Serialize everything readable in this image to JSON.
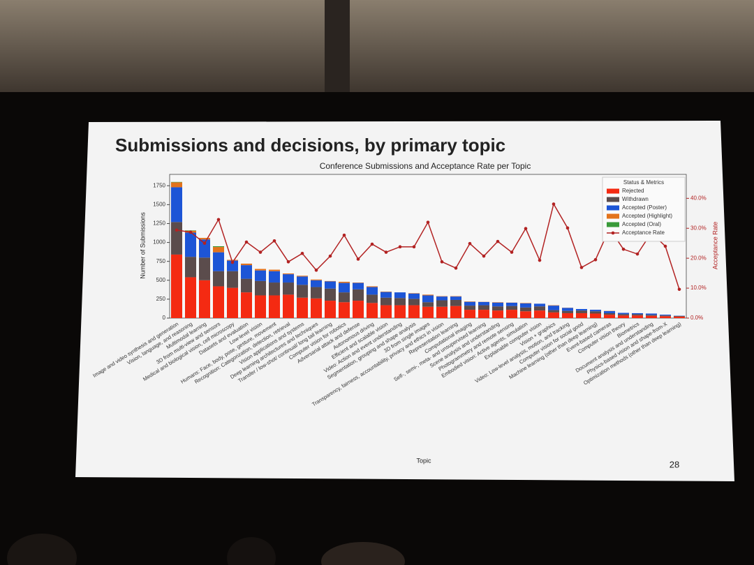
{
  "slide": {
    "title": "Submissions and decisions, by primary topic",
    "page_number": "28"
  },
  "chart_data": {
    "type": "bar",
    "stacked": true,
    "title": "Conference Submissions and Acceptance Rate per Topic",
    "x_label": "Topic",
    "y_label": "Number of Submissions",
    "y2_label": "Acceptance Rate",
    "legend_title": "Status & Metrics",
    "legend": "upper right",
    "categories": [
      "Image and video synthesis and generation",
      "Vision, language, and reasoning",
      "Multimodal learning",
      "3D from multi-view and sensors",
      "Medical and biological vision, cell microscopy",
      "Datasets and evaluation",
      "Low-level vision",
      "Humans: Face, body, pose, gesture, movement",
      "Recognition: Categorization, detection, retrieval",
      "Vision applications and systems",
      "Deep learning architectures and techniques",
      "Transfer / low-shot/ continual/ long tail learning",
      "Computer vision for robotics",
      "Adversarial attack and defense",
      "Autonomous driving",
      "Efficient and scalable vision",
      "Video: Action and event understanding",
      "Segmentation, grouping and shape analysis",
      "3D from single images",
      "Transparency, fairness, accountability, privacy and ethics in vision",
      "Representation learning",
      "Computational imaging",
      "Self-, semi-, meta- and unsupervised learning",
      "Scene analysis and understanding",
      "Photogrammetry and remote sensing",
      "Embodied vision: Active agents, simulation",
      "Explainable computer vision",
      "Vision + graphics",
      "Video: Low-level analysis, motion, and tracking",
      "Computer vision for social good",
      "Machine learning (other than deep learning)",
      "Event-based cameras",
      "Computer vision theory",
      "Biometrics",
      "Document analysis and understanding",
      "Physics-based vision and shape-from-X",
      "Optimization methods (other than deep learning)"
    ],
    "series": [
      {
        "name": "Rejected",
        "color": "#f42a12",
        "values": [
          840,
          540,
          500,
          420,
          400,
          340,
          300,
          300,
          310,
          270,
          260,
          230,
          210,
          230,
          200,
          170,
          170,
          170,
          150,
          150,
          160,
          110,
          110,
          100,
          110,
          90,
          100,
          75,
          65,
          65,
          60,
          45,
          35,
          35,
          30,
          25,
          20
        ]
      },
      {
        "name": "Withdrawn",
        "color": "#5b4c4c",
        "values": [
          430,
          270,
          300,
          200,
          220,
          180,
          190,
          170,
          160,
          170,
          150,
          160,
          130,
          150,
          110,
          100,
          95,
          85,
          60,
          85,
          80,
          55,
          60,
          55,
          50,
          50,
          55,
          30,
          30,
          35,
          30,
          20,
          18,
          17,
          13,
          10,
          8
        ]
      },
      {
        "name": "Accepted (Poster)",
        "color": "#1d55d6",
        "values": [
          460,
          320,
          240,
          250,
          140,
          180,
          140,
          150,
          110,
          110,
          90,
          95,
          125,
          85,
          100,
          75,
          75,
          70,
          90,
          50,
          45,
          50,
          43,
          50,
          43,
          55,
          35,
          60,
          40,
          20,
          20,
          27,
          16,
          13,
          17,
          10,
          3
        ]
      },
      {
        "name": "Accepted (Highlight)",
        "color": "#e3731c",
        "values": [
          65,
          25,
          20,
          70,
          10,
          20,
          20,
          20,
          10,
          10,
          10,
          5,
          15,
          5,
          10,
          5,
          0,
          5,
          10,
          5,
          5,
          5,
          2,
          5,
          2,
          5,
          0,
          5,
          2,
          0,
          0,
          3,
          0,
          0,
          0,
          0,
          0
        ]
      },
      {
        "name": "Accepted (Oral)",
        "color": "#3a9a3a",
        "values": [
          5,
          5,
          0,
          10,
          0,
          0,
          0,
          0,
          0,
          0,
          0,
          0,
          0,
          0,
          0,
          0,
          0,
          0,
          0,
          0,
          0,
          0,
          0,
          0,
          0,
          0,
          0,
          0,
          0,
          0,
          0,
          0,
          0,
          0,
          0,
          0,
          0
        ]
      },
      {
        "name": "Acceptance Rate",
        "type": "line",
        "axis": "y2",
        "color": "#b22222",
        "values": [
          29.4,
          28.7,
          25,
          32.9,
          18.6,
          25.4,
          22,
          25.8,
          18.8,
          21.6,
          16,
          20.7,
          27.7,
          19.7,
          24.7,
          22,
          23.8,
          23.8,
          32,
          18.8,
          16.7,
          24.9,
          20.7,
          25.6,
          22,
          29.9,
          19.3,
          38.1,
          30.1,
          16.9,
          19.5,
          29.9,
          23,
          21.4,
          28.5,
          24,
          9.6
        ]
      }
    ],
    "ylim": [
      0,
      1900
    ],
    "yticks": [
      0,
      250,
      500,
      750,
      1000,
      1250,
      1500,
      1750
    ],
    "y2lim": [
      0,
      48
    ],
    "y2ticks": [
      {
        "value": 0,
        "label": "0.0%"
      },
      {
        "value": 10,
        "label": "10.0%"
      },
      {
        "value": 20,
        "label": "20.0%"
      },
      {
        "value": 30,
        "label": "30.0%"
      },
      {
        "value": 40,
        "label": "40.0%"
      }
    ]
  }
}
